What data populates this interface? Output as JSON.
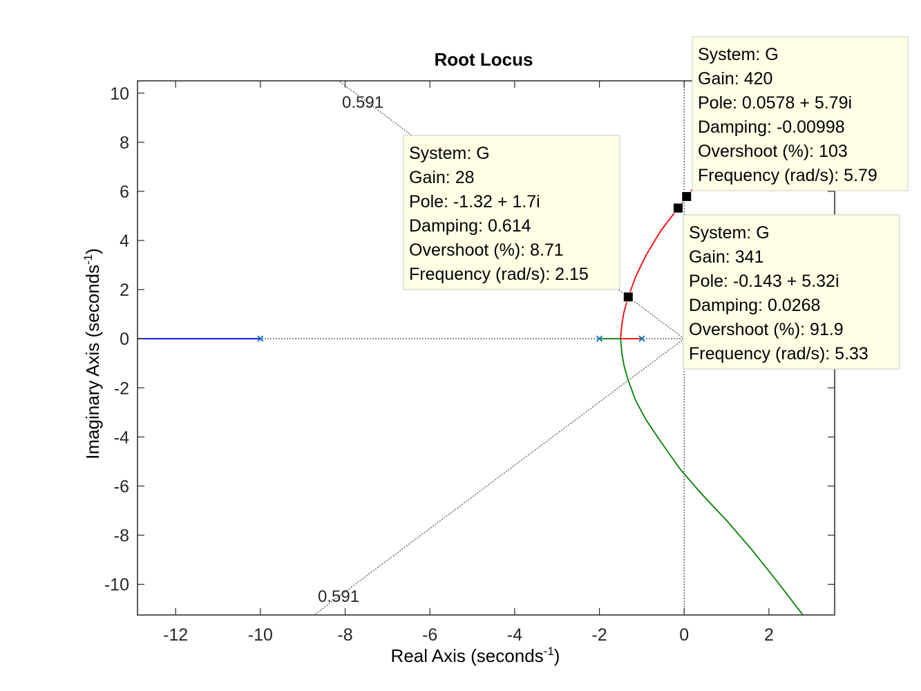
{
  "chart_data": {
    "type": "line",
    "title": "Root Locus",
    "xlabel": "Real Axis (seconds",
    "xlabel_sup": "-1",
    "xlabel_close": ")",
    "ylabel": "Imaginary Axis (seconds",
    "ylabel_sup": "-1",
    "ylabel_close": ")",
    "xlim": [
      -12.9,
      3.55
    ],
    "ylim": [
      -11.25,
      10.5
    ],
    "xticks": [
      -12,
      -10,
      -8,
      -6,
      -4,
      -2,
      0,
      2
    ],
    "yticks": [
      -10,
      -8,
      -6,
      -4,
      -2,
      0,
      2,
      4,
      6,
      8,
      10
    ],
    "grid": false,
    "colors": {
      "blue": "#0000ff",
      "green": "#008000",
      "red": "#ff0000",
      "pole_marker": "#0072bd",
      "tip_bg": "#ffffe6",
      "tip_border": "#c8c8c8"
    },
    "open_loop_poles": [
      {
        "x": -10,
        "y": 0
      },
      {
        "x": -2,
        "y": 0
      },
      {
        "x": -1,
        "y": 0
      }
    ],
    "series": [
      {
        "color": "blue",
        "points": [
          [
            -10,
            0
          ],
          [
            -12.9,
            0
          ]
        ]
      },
      {
        "color": "green",
        "points": [
          [
            -2,
            0
          ],
          [
            -1.5,
            0
          ]
        ]
      },
      {
        "color": "red",
        "points": [
          [
            -1,
            0
          ],
          [
            -1.5,
            0
          ]
        ]
      },
      {
        "color": "red",
        "points": [
          [
            -1.5,
            0
          ],
          [
            -1.47,
            0.6
          ],
          [
            -1.42,
            1.1
          ],
          [
            -1.32,
            1.7
          ],
          [
            -1.15,
            2.5
          ],
          [
            -0.9,
            3.4
          ],
          [
            -0.55,
            4.4
          ],
          [
            -0.143,
            5.32
          ],
          [
            0.0578,
            5.79
          ],
          [
            0.35,
            6.4
          ]
        ]
      },
      {
        "color": "green",
        "points": [
          [
            -1.5,
            0
          ],
          [
            -1.47,
            -0.6
          ],
          [
            -1.42,
            -1.1
          ],
          [
            -1.32,
            -1.7
          ],
          [
            -1.15,
            -2.5
          ],
          [
            -0.9,
            -3.3
          ],
          [
            -0.55,
            -4.2
          ],
          [
            -0.1,
            -5.3
          ],
          [
            0.4,
            -6.3
          ],
          [
            1.0,
            -7.4
          ],
          [
            1.6,
            -8.6
          ],
          [
            2.2,
            -9.9
          ],
          [
            2.8,
            -11.25
          ]
        ]
      }
    ],
    "damping_label": "0.591",
    "datatips": [
      {
        "marker": {
          "x": -1.32,
          "y": 1.7
        },
        "lines": [
          "System: G",
          "Gain: 28",
          "Pole: -1.32 + 1.7i",
          "Damping: 0.614",
          "Overshoot (%): 8.71",
          "Frequency (rad/s): 2.15"
        ]
      },
      {
        "marker": {
          "x": 0.0578,
          "y": 5.79
        },
        "lines": [
          "System: G",
          "Gain: 420",
          "Pole: 0.0578 + 5.79i",
          "Damping: -0.00998",
          "Overshoot (%): 103",
          "Frequency (rad/s): 5.79"
        ]
      },
      {
        "marker": {
          "x": -0.143,
          "y": 5.32
        },
        "lines": [
          "System: G",
          "Gain: 341",
          "Pole: -0.143 + 5.32i",
          "Damping: 0.0268",
          "Overshoot (%): 91.9",
          "Frequency (rad/s): 5.33"
        ]
      }
    ]
  }
}
